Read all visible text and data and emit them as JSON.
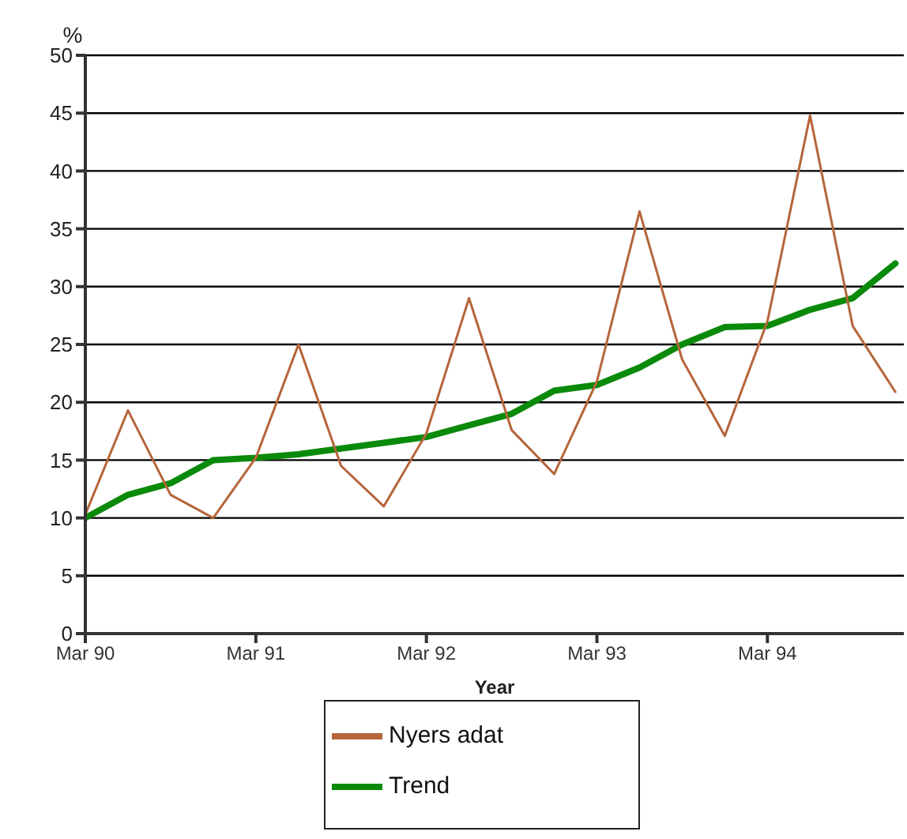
{
  "chart_data": {
    "type": "line",
    "xlabel": "Year",
    "ylabel": "%",
    "categories": [
      "Mar 90",
      null,
      null,
      null,
      "Mar 91",
      null,
      null,
      null,
      "Mar 92",
      null,
      null,
      null,
      "Mar 93",
      null,
      null,
      null,
      "Mar 94",
      null,
      null,
      null
    ],
    "series": [
      {
        "name": "Trend",
        "color": "#0a8a0a",
        "values": [
          10,
          12,
          13,
          15,
          15.2,
          15.5,
          16,
          16.5,
          17,
          18,
          19,
          21,
          21.5,
          23,
          25,
          26.5,
          26.6,
          28,
          29,
          32
        ]
      },
      {
        "name": "Nyers adat",
        "color": "#b5653a",
        "values": [
          10.3,
          19.3,
          12,
          10,
          15.2,
          25,
          14.5,
          11,
          17.3,
          29,
          17.6,
          13.8,
          21.8,
          36.5,
          23.7,
          17.1,
          27,
          44.8,
          26.6,
          20.9
        ]
      }
    ],
    "ylim": [
      0,
      50
    ],
    "yticks": [
      0,
      5,
      10,
      15,
      20,
      25,
      30,
      35,
      40,
      45,
      50
    ],
    "grid": "y",
    "legend": "bottom",
    "marker": "none",
    "line_style": "solid"
  }
}
